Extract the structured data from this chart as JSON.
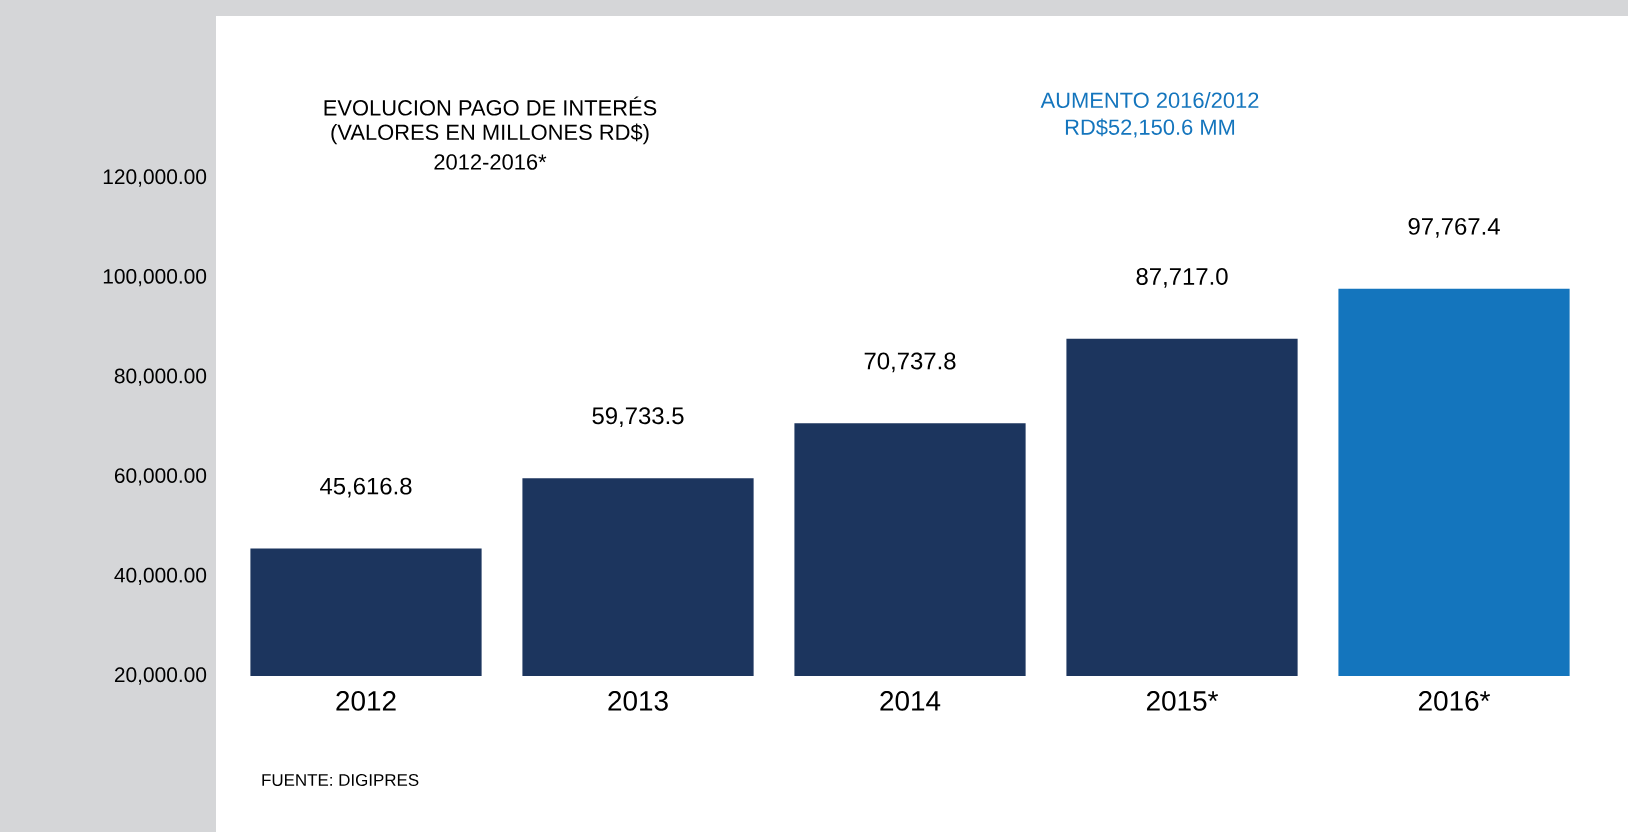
{
  "chart_data": {
    "type": "bar",
    "title": "EVOLUCION PAGO DE INTERÉS",
    "subtitle": "(VALORES EN MILLONES RD$)",
    "categories": [
      "2012",
      "2013",
      "2014",
      "2015*",
      "2016*"
    ],
    "values": [
      45616.8,
      59733.5,
      70737.8,
      87717.0,
      97767.4
    ],
    "value_labels": [
      "45,616.8",
      "59,733.5",
      "70,737.8",
      "87,717.0",
      "97,767.4"
    ],
    "colors": [
      "#1c355e",
      "#1c355e",
      "#1c355e",
      "#1c355e",
      "#1475bd"
    ],
    "ylim": [
      20000,
      120000
    ],
    "yticks": [
      {
        "value": 20000,
        "label": "20,000.00"
      },
      {
        "value": 40000,
        "label": "40,000.00"
      },
      {
        "value": 60000,
        "label": "60,000.00"
      },
      {
        "value": 80000,
        "label": "80,000.00"
      },
      {
        "value": 100000,
        "label": "100,000.00"
      },
      {
        "value": 120000,
        "label": "120,000.00"
      }
    ],
    "annotations": [
      "2012-2016*",
      "AUMENTO 2016/2012",
      "RD$52,150.6 MM",
      "FUENTE: DIGIPRES"
    ]
  }
}
